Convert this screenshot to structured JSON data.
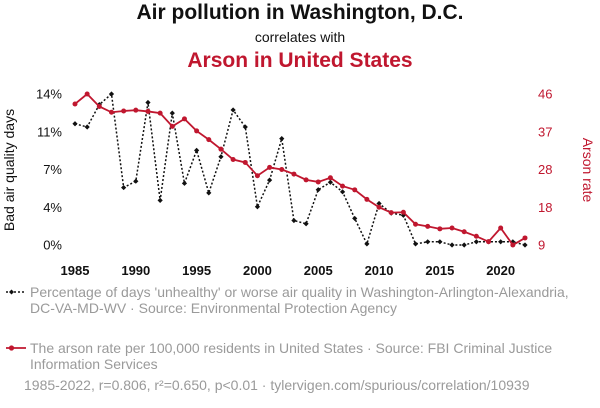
{
  "header": {
    "title": "Air pollution in Washington, D.C.",
    "connector": "correlates with",
    "subtitle": "Arson in United States"
  },
  "chart_data": {
    "type": "line",
    "x": [
      1985,
      1986,
      1987,
      1988,
      1989,
      1990,
      1991,
      1992,
      1993,
      1994,
      1995,
      1996,
      1997,
      1998,
      1999,
      2000,
      2001,
      2002,
      2003,
      2004,
      2005,
      2006,
      2007,
      2008,
      2009,
      2010,
      2011,
      2012,
      2013,
      2014,
      2015,
      2016,
      2017,
      2018,
      2019,
      2020,
      2021,
      2022
    ],
    "xlim": [
      1985,
      2022
    ],
    "x_ticks": [
      "1985",
      "1990",
      "1995",
      "2000",
      "2005",
      "2010",
      "2015",
      "2020"
    ],
    "series": [
      {
        "name": "Percentage of days 'unhealthy' or worse air quality in Washington-Arlington-Alexandria, DC-VA-MD-WV · Source: Environmental Protection Agency",
        "axis": "left",
        "color": "#111111",
        "style": "dotted",
        "marker": "diamond",
        "values": [
          11.4,
          11.1,
          13.2,
          14.2,
          5.4,
          6.0,
          13.4,
          4.2,
          12.4,
          5.8,
          8.9,
          4.9,
          8.3,
          12.7,
          11.1,
          3.6,
          6.1,
          10.0,
          2.3,
          2.0,
          5.2,
          5.9,
          5.0,
          2.5,
          0.1,
          3.9,
          3.0,
          2.8,
          0.1,
          0.3,
          0.3,
          0.0,
          0.0,
          0.3,
          0.3,
          0.3,
          0.3,
          0.0
        ]
      },
      {
        "name": "The arson rate per 100,000 residents in United States · Source: FBI Criminal Justice Information Services",
        "axis": "right",
        "color": "#c0172f",
        "style": "solid",
        "marker": "circle",
        "values": [
          43.3,
          45.7,
          42.7,
          41.3,
          41.6,
          41.8,
          41.5,
          41.1,
          37.9,
          39.7,
          36.8,
          34.7,
          32.4,
          29.9,
          29.2,
          26.0,
          28.0,
          27.5,
          26.4,
          25.0,
          24.5,
          25.5,
          23.5,
          22.6,
          20.3,
          18.4,
          17.1,
          17.2,
          14.3,
          13.8,
          13.2,
          13.4,
          12.5,
          11.4,
          10.1,
          13.4,
          9.3,
          11.0
        ]
      }
    ],
    "y_left": {
      "label": "Bad air quality days",
      "range": [
        0,
        14.2
      ],
      "ticks": [
        0,
        3.55,
        7.1,
        10.65,
        14.2
      ],
      "tick_labels": [
        "0%",
        "4%",
        "7%",
        "11%",
        "14%"
      ]
    },
    "y_right": {
      "label": "Arson rate",
      "range": [
        9.3,
        45.7
      ],
      "ticks": [
        9.3,
        18.4,
        27.5,
        36.6,
        45.7
      ],
      "tick_labels": [
        "9",
        "18",
        "28",
        "37",
        "46"
      ]
    }
  },
  "legend": [
    {
      "text": "Percentage of days 'unhealthy' or worse air quality in Washington-Arlington-Alexandria, DC-VA-MD-WV · Source: Environmental Protection Agency",
      "color": "#111111"
    },
    {
      "text": "The arson rate per 100,000 residents in United States · Source: FBI Criminal Justice Information Services",
      "color": "#c0172f"
    }
  ],
  "footer": {
    "text": "1985-2022, r=0.806, r²=0.650, p<0.01 · tylervigen.com/spurious/correlation/10939"
  }
}
